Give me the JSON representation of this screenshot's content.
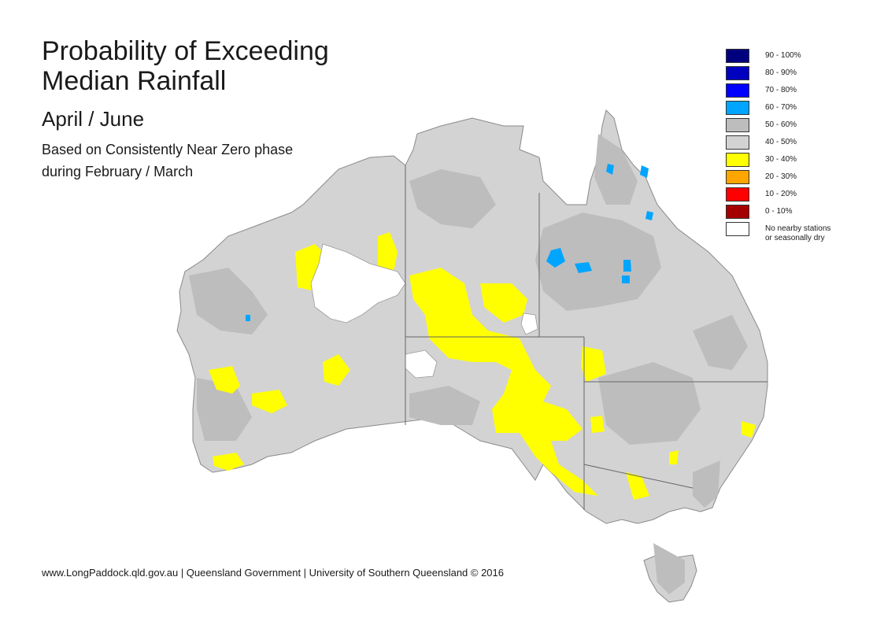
{
  "header": {
    "title": "Probability of Exceeding\nMedian Rainfall",
    "period": "April / June",
    "description": "Based on Consistently Near Zero phase\nduring February / March"
  },
  "legend": {
    "items": [
      {
        "label": "90 - 100%",
        "color": "#00007f"
      },
      {
        "label": "80 - 90%",
        "color": "#0000bf"
      },
      {
        "label": "70 - 80%",
        "color": "#0000ff"
      },
      {
        "label": "60 - 70%",
        "color": "#00a5ff"
      },
      {
        "label": "50 - 60%",
        "color": "#bdbdbd"
      },
      {
        "label": "40 - 50%",
        "color": "#d3d3d3"
      },
      {
        "label": "30 - 40%",
        "color": "#ffff00"
      },
      {
        "label": "20 - 30%",
        "color": "#ffa500"
      },
      {
        "label": "10 - 20%",
        "color": "#ff0000"
      },
      {
        "label": "0 - 10%",
        "color": "#a50000"
      },
      {
        "label": "No nearby stations\nor seasonally dry",
        "color": "#ffffff"
      }
    ]
  },
  "footer": {
    "credits": "www.LongPaddock.qld.gov.au | Queensland Government | University of Southern Queensland © 2016"
  }
}
